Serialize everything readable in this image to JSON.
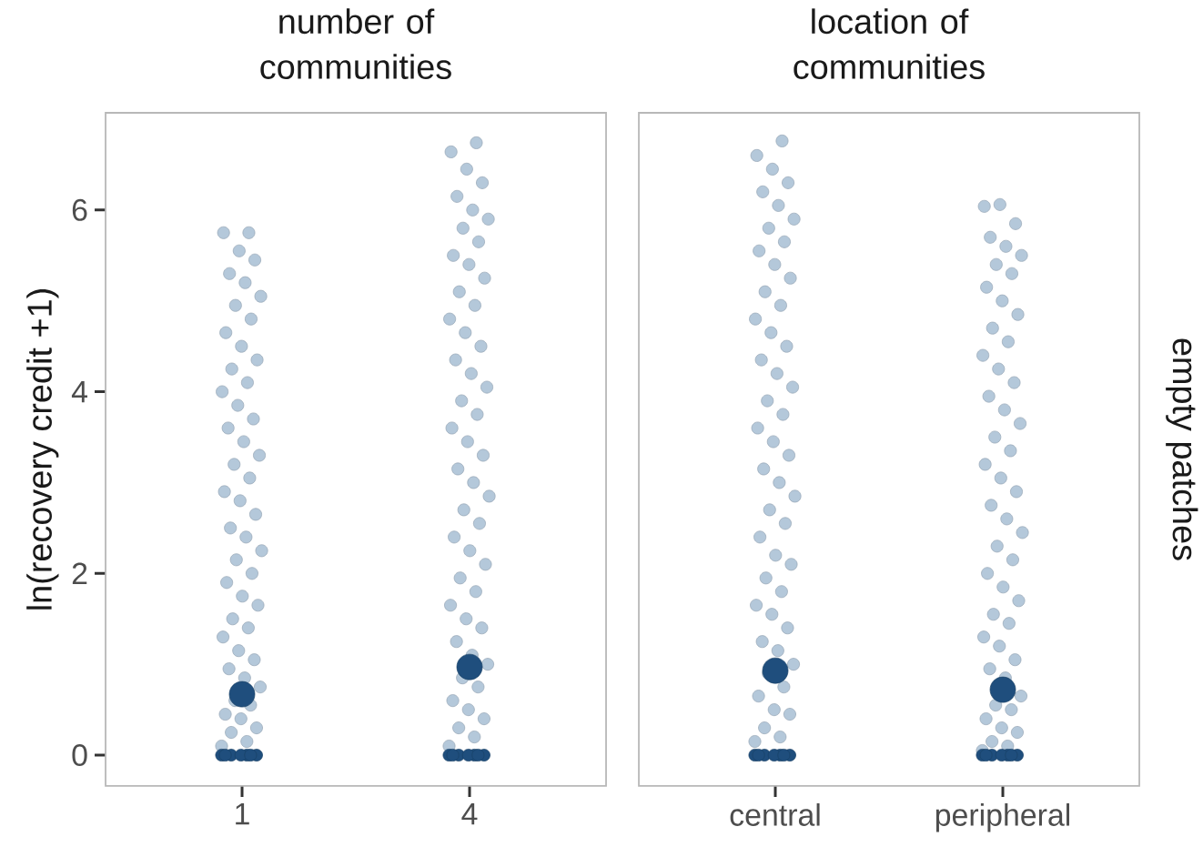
{
  "chart_data": [
    {
      "type": "scatter",
      "title": "number of communities",
      "ylabel": "ln(recovery credit +1)",
      "marker": "circle",
      "categories": [
        "1",
        "4"
      ],
      "ylim": [
        -0.34,
        7.07
      ],
      "yticks": [
        0,
        2,
        4,
        6
      ],
      "series": [
        {
          "color": "#b4c8da",
          "x": [
            "1",
            "1",
            "1",
            "1",
            "1",
            "1",
            "1",
            "1",
            "1",
            "1",
            "1",
            "1",
            "1",
            "1",
            "1",
            "1",
            "1",
            "1",
            "1",
            "1",
            "1",
            "1",
            "1",
            "1",
            "1",
            "1",
            "1",
            "1",
            "1",
            "1",
            "1",
            "1",
            "1",
            "1",
            "1",
            "1",
            "1",
            "1",
            "1",
            "1",
            "1",
            "1",
            "1",
            "1",
            "1",
            "1",
            "1",
            "1",
            "1",
            "4",
            "4",
            "4",
            "4",
            "4",
            "4",
            "4",
            "4",
            "4",
            "4",
            "4",
            "4",
            "4",
            "4",
            "4",
            "4",
            "4",
            "4",
            "4",
            "4",
            "4",
            "4",
            "4",
            "4",
            "4",
            "4",
            "4",
            "4",
            "4",
            "4",
            "4",
            "4",
            "4",
            "4",
            "4",
            "4",
            "4",
            "4",
            "4",
            "4",
            "4",
            "4",
            "4",
            "4",
            "4",
            "4",
            "4",
            "4",
            "4"
          ],
          "values": [
            0.1,
            0.15,
            0.25,
            0.3,
            0.4,
            0.45,
            0.55,
            0.6,
            0.75,
            0.85,
            0.95,
            1.05,
            1.15,
            1.3,
            1.4,
            1.5,
            1.65,
            1.75,
            1.9,
            2.0,
            2.15,
            2.25,
            2.4,
            2.5,
            2.65,
            2.8,
            2.9,
            3.05,
            3.2,
            3.3,
            3.45,
            3.6,
            3.7,
            3.85,
            4.0,
            4.1,
            4.25,
            4.35,
            4.5,
            4.65,
            4.8,
            4.95,
            5.05,
            5.2,
            5.3,
            5.45,
            5.55,
            5.75,
            5.75,
            0.1,
            0.2,
            0.3,
            0.4,
            0.5,
            0.6,
            0.75,
            0.85,
            1.0,
            1.1,
            1.25,
            1.4,
            1.5,
            1.65,
            1.8,
            1.95,
            2.1,
            2.25,
            2.4,
            2.55,
            2.7,
            2.85,
            3.0,
            3.15,
            3.3,
            3.45,
            3.6,
            3.75,
            3.9,
            4.05,
            4.2,
            4.35,
            4.5,
            4.65,
            4.8,
            4.95,
            5.1,
            5.25,
            5.4,
            5.5,
            5.65,
            5.8,
            5.9,
            6.0,
            6.15,
            6.3,
            6.45,
            6.64,
            6.74
          ]
        },
        {
          "color": "#1f4e7d",
          "x": [
            "1",
            "1",
            "1",
            "1",
            "1",
            "1",
            "1",
            "4",
            "4",
            "4",
            "4",
            "4",
            "4",
            "4"
          ],
          "values": [
            0,
            0,
            0,
            0,
            0,
            0,
            0,
            0,
            0,
            0,
            0,
            0,
            0,
            0
          ]
        },
        {
          "color": "#1f4e7d",
          "values": [
            0.67,
            0.97
          ]
        }
      ]
    },
    {
      "type": "scatter",
      "title": "location of communities",
      "annotations": [
        "empty patches"
      ],
      "marker": "circle",
      "tick_labels": "x",
      "categories": [
        "central",
        "peripheral"
      ],
      "ylim": [
        -0.34,
        7.07
      ],
      "yticks": [
        0,
        2,
        4,
        6
      ],
      "series": [
        {
          "color": "#b4c8da",
          "x": [
            "central",
            "central",
            "central",
            "central",
            "central",
            "central",
            "central",
            "central",
            "central",
            "central",
            "central",
            "central",
            "central",
            "central",
            "central",
            "central",
            "central",
            "central",
            "central",
            "central",
            "central",
            "central",
            "central",
            "central",
            "central",
            "central",
            "central",
            "central",
            "central",
            "central",
            "central",
            "central",
            "central",
            "central",
            "central",
            "central",
            "central",
            "central",
            "central",
            "central",
            "central",
            "central",
            "central",
            "central",
            "central",
            "central",
            "central",
            "central",
            "central",
            "peripheral",
            "peripheral",
            "peripheral",
            "peripheral",
            "peripheral",
            "peripheral",
            "peripheral",
            "peripheral",
            "peripheral",
            "peripheral",
            "peripheral",
            "peripheral",
            "peripheral",
            "peripheral",
            "peripheral",
            "peripheral",
            "peripheral",
            "peripheral",
            "peripheral",
            "peripheral",
            "peripheral",
            "peripheral",
            "peripheral",
            "peripheral",
            "peripheral",
            "peripheral",
            "peripheral",
            "peripheral",
            "peripheral",
            "peripheral",
            "peripheral",
            "peripheral",
            "peripheral",
            "peripheral",
            "peripheral",
            "peripheral",
            "peripheral",
            "peripheral",
            "peripheral",
            "peripheral",
            "peripheral",
            "peripheral",
            "peripheral",
            "peripheral",
            "peripheral",
            "peripheral",
            "peripheral",
            "peripheral"
          ],
          "values": [
            0.15,
            0.2,
            0.3,
            0.45,
            0.5,
            0.65,
            0.75,
            0.9,
            1.0,
            1.15,
            1.25,
            1.4,
            1.55,
            1.65,
            1.8,
            1.95,
            2.1,
            2.2,
            2.4,
            2.55,
            2.7,
            2.85,
            3.0,
            3.15,
            3.3,
            3.45,
            3.6,
            3.75,
            3.9,
            4.05,
            4.2,
            4.35,
            4.5,
            4.65,
            4.8,
            4.95,
            5.1,
            5.25,
            5.4,
            5.55,
            5.65,
            5.8,
            5.9,
            6.05,
            6.2,
            6.3,
            6.45,
            6.6,
            6.76,
            0.05,
            0.1,
            0.15,
            0.25,
            0.3,
            0.4,
            0.5,
            0.55,
            0.65,
            0.85,
            0.95,
            1.05,
            1.2,
            1.3,
            1.45,
            1.55,
            1.7,
            1.85,
            2.0,
            2.15,
            2.3,
            2.45,
            2.6,
            2.75,
            2.9,
            3.05,
            3.2,
            3.35,
            3.5,
            3.65,
            3.8,
            3.95,
            4.1,
            4.25,
            4.4,
            4.55,
            4.7,
            4.85,
            5.0,
            5.15,
            5.3,
            5.4,
            5.5,
            5.6,
            5.7,
            5.85,
            6.06,
            6.04
          ]
        },
        {
          "color": "#1f4e7d",
          "x": [
            "central",
            "central",
            "central",
            "central",
            "central",
            "central",
            "central",
            "peripheral",
            "peripheral",
            "peripheral",
            "peripheral",
            "peripheral",
            "peripheral",
            "peripheral"
          ],
          "values": [
            0,
            0,
            0,
            0,
            0,
            0,
            0,
            0,
            0,
            0,
            0,
            0,
            0,
            0
          ]
        },
        {
          "color": "#1f4e7d",
          "values": [
            0.93,
            0.72
          ]
        }
      ]
    }
  ]
}
